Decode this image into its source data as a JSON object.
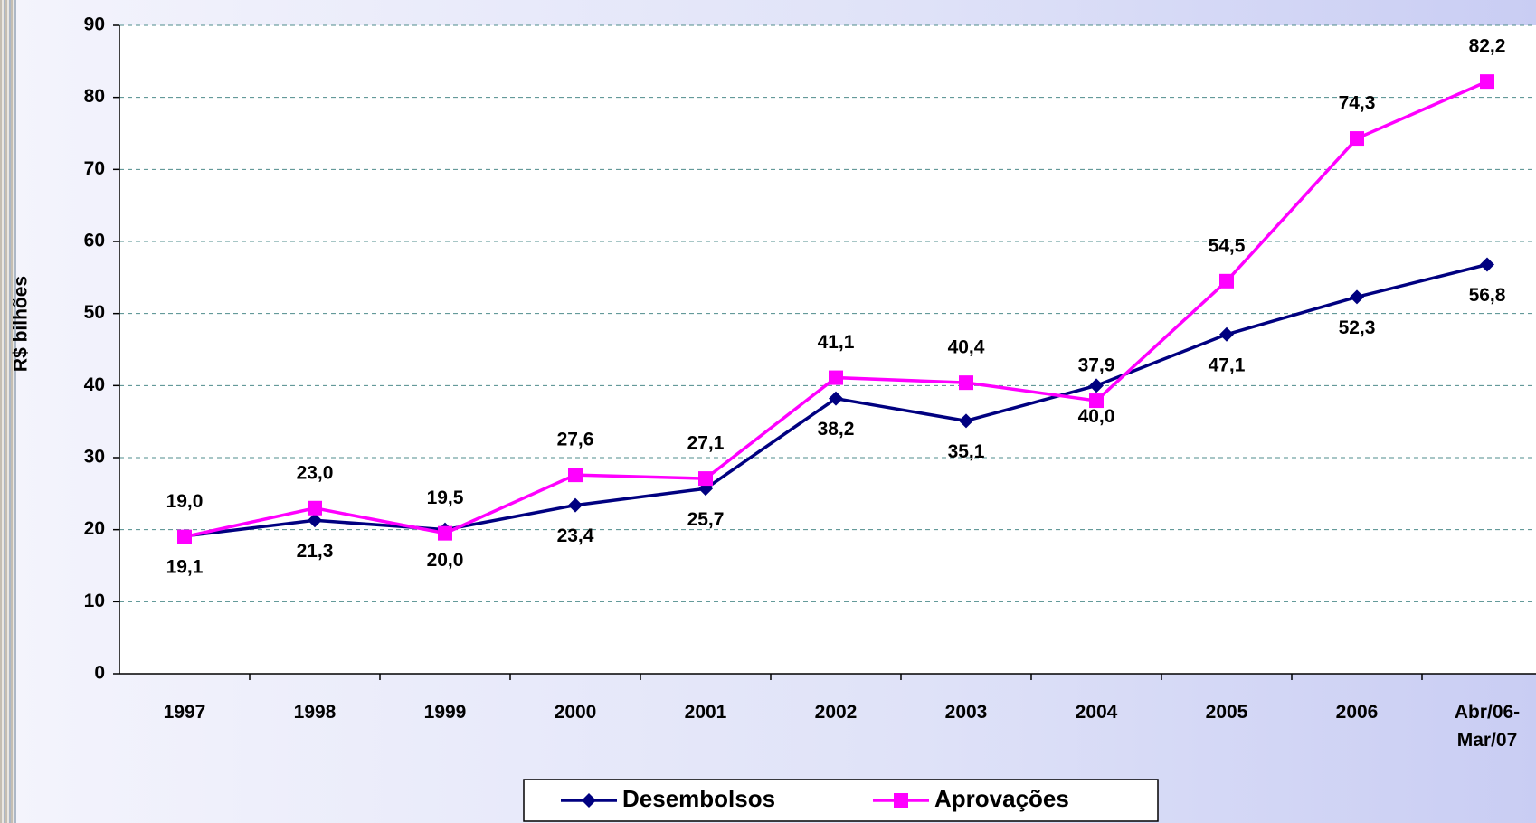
{
  "chart_data": {
    "type": "line",
    "y_label": "R$ bilhões",
    "categories": [
      "1997",
      "1998",
      "1999",
      "2000",
      "2001",
      "2002",
      "2003",
      "2004",
      "2005",
      "2006",
      "Abr/06-Mar/07"
    ],
    "series": [
      {
        "name": "Desembolsos",
        "color": "#000080",
        "marker": "diamond",
        "values": [
          19.1,
          21.3,
          20.0,
          23.4,
          25.7,
          38.2,
          35.1,
          40.0,
          47.1,
          52.3,
          56.8
        ],
        "value_labels": [
          "19,1",
          "21,3",
          "20,0",
          "23,4",
          "25,7",
          "38,2",
          "35,1",
          "40,0",
          "47,1",
          "52,3",
          "56,8"
        ]
      },
      {
        "name": "Aprovações",
        "color": "#ff00ff",
        "marker": "square",
        "values": [
          19.0,
          23.0,
          19.5,
          27.6,
          27.1,
          41.1,
          40.4,
          37.9,
          54.5,
          74.3,
          82.2
        ],
        "value_labels": [
          "19,0",
          "23,0",
          "19,5",
          "27,6",
          "27,1",
          "41,1",
          "40,4",
          "37,9",
          "54,5",
          "74,3",
          "82,2"
        ]
      }
    ],
    "ylim": [
      0,
      90
    ],
    "yticks": [
      0,
      10,
      20,
      30,
      40,
      50,
      60,
      70,
      80,
      90
    ],
    "grid": true,
    "legend": "bottom"
  }
}
